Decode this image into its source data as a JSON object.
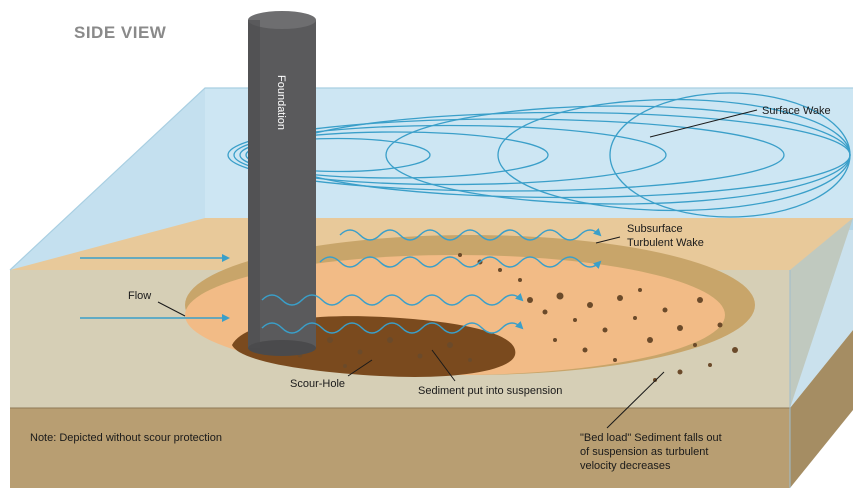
{
  "title": "SIDE VIEW",
  "labels": {
    "foundation": "Foundation",
    "surface_wake": "Surface Wake",
    "subsurface_line1": "Subsurface",
    "subsurface_line2": "Turbulent Wake",
    "flow": "Flow",
    "scour_hole": "Scour-Hole",
    "sediment_suspension": "Sediment put into suspension",
    "bed_load_line1": "\"Bed load\" Sediment falls out",
    "bed_load_line2": "of suspension as turbulent",
    "bed_load_line3": "velocity decreases",
    "note": "Note: Depicted without scour protection"
  },
  "colors": {
    "water_top": "#cde6f3",
    "water_side": "#b5d9ec",
    "seabed_top": "#e8c99a",
    "seabed_side": "#b89e72",
    "seabed_right": "#a58d63",
    "scour_outer": "#c8a56a",
    "scour_inner": "#f2bb86",
    "scour_hole": "#7a4a1e",
    "pile": "#5a5a5c",
    "wake_lines": "#3a9fc9",
    "arrows": "#3a9fc9",
    "sediment": "#6b4a2a"
  },
  "icons": {
    "flow_arrow": "flow-arrow-icon"
  }
}
